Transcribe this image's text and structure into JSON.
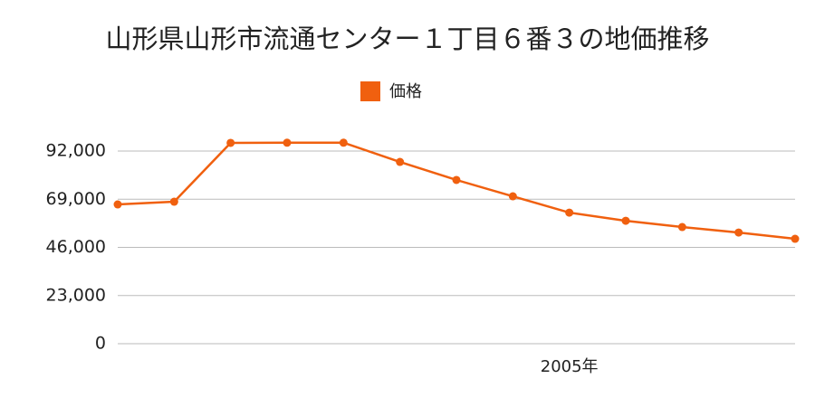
{
  "chart_data": {
    "type": "line",
    "title": "山形県山形市流通センター１丁目６番３の地価推移",
    "categories": [
      null,
      null,
      null,
      null,
      null,
      null,
      null,
      null,
      "2005年",
      null,
      null,
      null,
      null
    ],
    "series": [
      {
        "name": "価格",
        "color": "#f0600f",
        "values": [
          66500,
          67800,
          95900,
          96000,
          96000,
          86800,
          78200,
          70400,
          62600,
          58700,
          55700,
          53100,
          50100
        ]
      }
    ],
    "ylim": [
      0,
      100000
    ],
    "yticks": [
      0,
      {
        "value": 23000,
        "label": "23,000"
      },
      {
        "value": 46000,
        "label": "46,000"
      },
      {
        "value": 69000,
        "label": "69,000"
      },
      {
        "value": 92000,
        "label": "92,000"
      }
    ],
    "grid": true
  }
}
